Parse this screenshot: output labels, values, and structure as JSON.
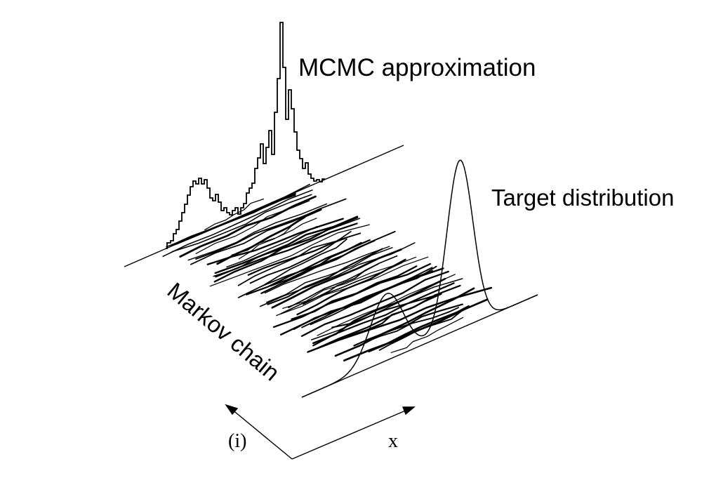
{
  "labels": {
    "mcmc_approximation": "MCMC approximation",
    "target_distribution": "Target distribution",
    "markov_chain": "Markov chain",
    "iteration_axis": "(i)",
    "x_axis": "x"
  },
  "colors": {
    "ink": "#000000",
    "background": "#ffffff"
  }
}
